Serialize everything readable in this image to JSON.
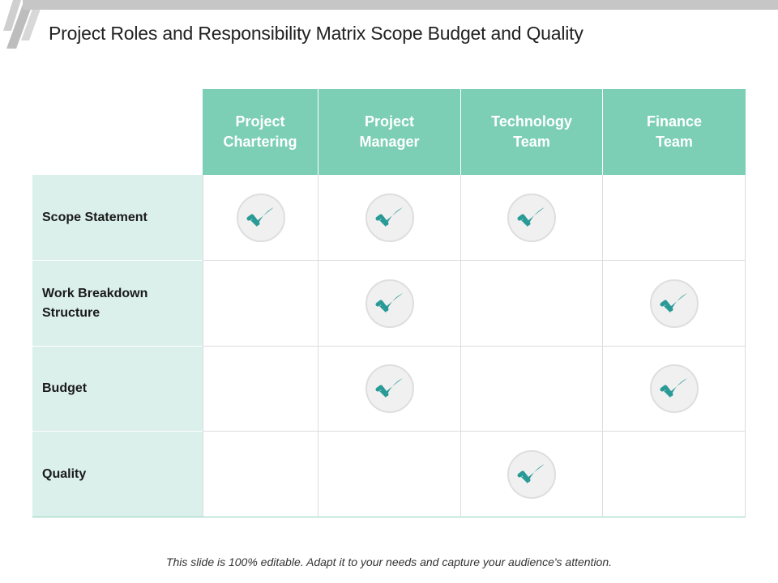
{
  "title": "Project Roles and Responsibility Matrix Scope Budget and Quality",
  "columns": [
    {
      "line1": "Project",
      "line2": "Chartering"
    },
    {
      "line1": "Project",
      "line2": "Manager"
    },
    {
      "line1": "Technology",
      "line2": "Team"
    },
    {
      "line1": "Finance",
      "line2": "Team"
    }
  ],
  "rows": [
    {
      "label_line1": "Scope Statement",
      "label_line2": "",
      "checks": [
        true,
        true,
        true,
        false
      ]
    },
    {
      "label_line1": "Work Breakdown",
      "label_line2": "Structure",
      "checks": [
        false,
        true,
        false,
        true
      ]
    },
    {
      "label_line1": "Budget",
      "label_line2": "",
      "checks": [
        false,
        true,
        false,
        true
      ]
    },
    {
      "label_line1": "Quality",
      "label_line2": "",
      "checks": [
        false,
        false,
        true,
        false
      ]
    }
  ],
  "icons": {
    "check": "checkmark-icon"
  },
  "colors": {
    "header_bg": "#7ccfb4",
    "row_label_bg": "#dbf0ea",
    "check_color": "#2a9a96"
  },
  "footer": "This slide is 100% editable. Adapt it to your needs and capture your audience's attention."
}
